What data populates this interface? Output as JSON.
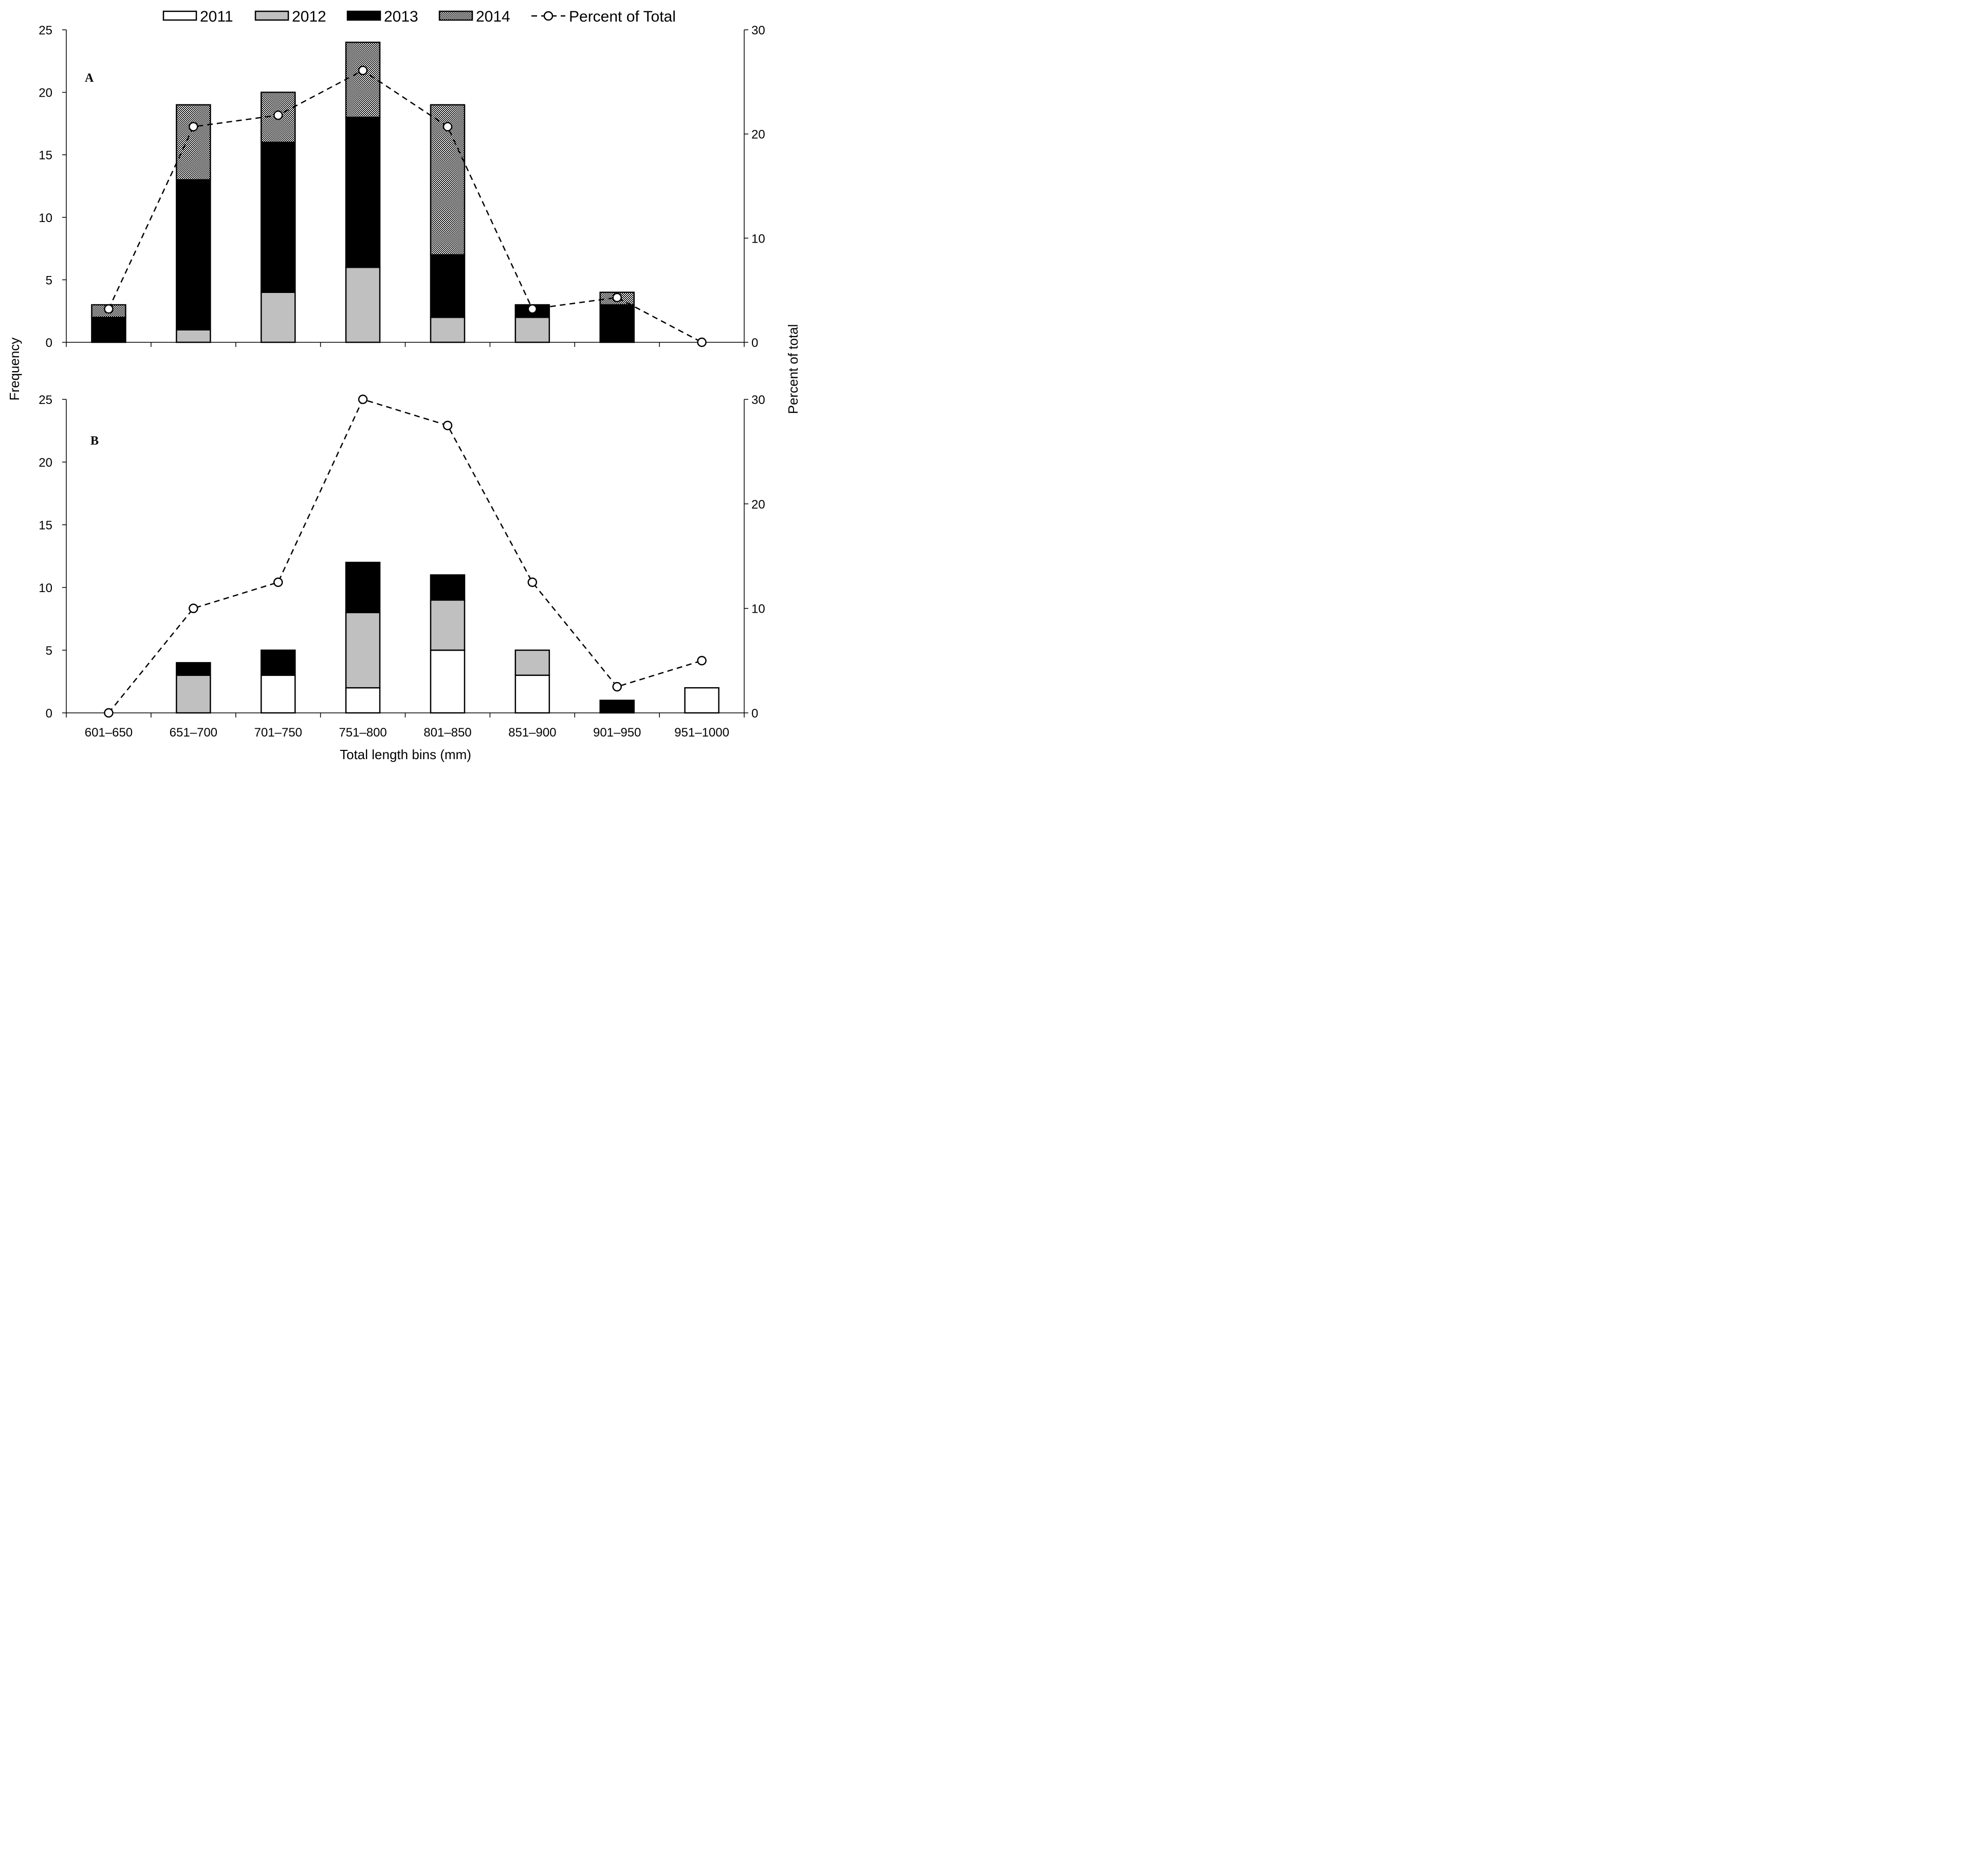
{
  "chart_data": {
    "type": "bar",
    "stacked": true,
    "secondary_type": "line",
    "legend": {
      "placement": "top",
      "entries": [
        {
          "label": "2011",
          "key": "2011"
        },
        {
          "label": "2012",
          "key": "2012"
        },
        {
          "label": "2013",
          "key": "2013"
        },
        {
          "label": "2014",
          "key": "2014"
        },
        {
          "label": "Percent of Total",
          "key": "percent"
        }
      ]
    },
    "series_styles": {
      "2011": {
        "fill": "#ffffff"
      },
      "2012": {
        "fill": "#c0c0c0"
      },
      "2013": {
        "fill": "#000000"
      },
      "2014": {
        "fill": "url(#hatch)"
      }
    },
    "xlabel": "Total length bins (mm)",
    "ylabel": "Frequency",
    "y2label": "Percent of total",
    "categories": [
      "601–650",
      "651–700",
      "701–750",
      "751–800",
      "801–850",
      "851–900",
      "901–950",
      "951–1000"
    ],
    "ylim": [
      0,
      25
    ],
    "yticks": [
      0,
      5,
      10,
      15,
      20,
      25
    ],
    "y2lim": [
      0,
      30
    ],
    "y2ticks": [
      0,
      10,
      20,
      30
    ],
    "panels": [
      {
        "label": "A",
        "series": [
          {
            "name": "2011",
            "values": [
              0,
              0,
              0,
              0,
              0,
              0,
              0,
              0
            ]
          },
          {
            "name": "2012",
            "values": [
              0,
              1,
              4,
              6,
              2,
              2,
              0,
              0
            ]
          },
          {
            "name": "2013",
            "values": [
              2,
              12,
              12,
              12,
              5,
              1,
              3,
              0
            ]
          },
          {
            "name": "2014",
            "values": [
              1,
              6,
              4,
              6,
              12,
              0,
              1,
              0
            ]
          }
        ],
        "percent_of_total": [
          3.2,
          20.7,
          21.8,
          26.1,
          20.7,
          3.2,
          4.3,
          0
        ]
      },
      {
        "label": "B",
        "series": [
          {
            "name": "2011",
            "values": [
              0,
              0,
              3,
              2,
              5,
              3,
              0,
              2
            ]
          },
          {
            "name": "2012",
            "values": [
              0,
              3,
              0,
              6,
              4,
              2,
              0,
              0
            ]
          },
          {
            "name": "2013",
            "values": [
              0,
              1,
              2,
              4,
              2,
              0,
              1,
              0
            ]
          },
          {
            "name": "2014",
            "values": [
              0,
              0,
              0,
              0,
              0,
              0,
              0,
              0
            ]
          }
        ],
        "percent_of_total": [
          0,
          10,
          12.5,
          30,
          27.5,
          12.5,
          2.5,
          5
        ]
      }
    ]
  }
}
